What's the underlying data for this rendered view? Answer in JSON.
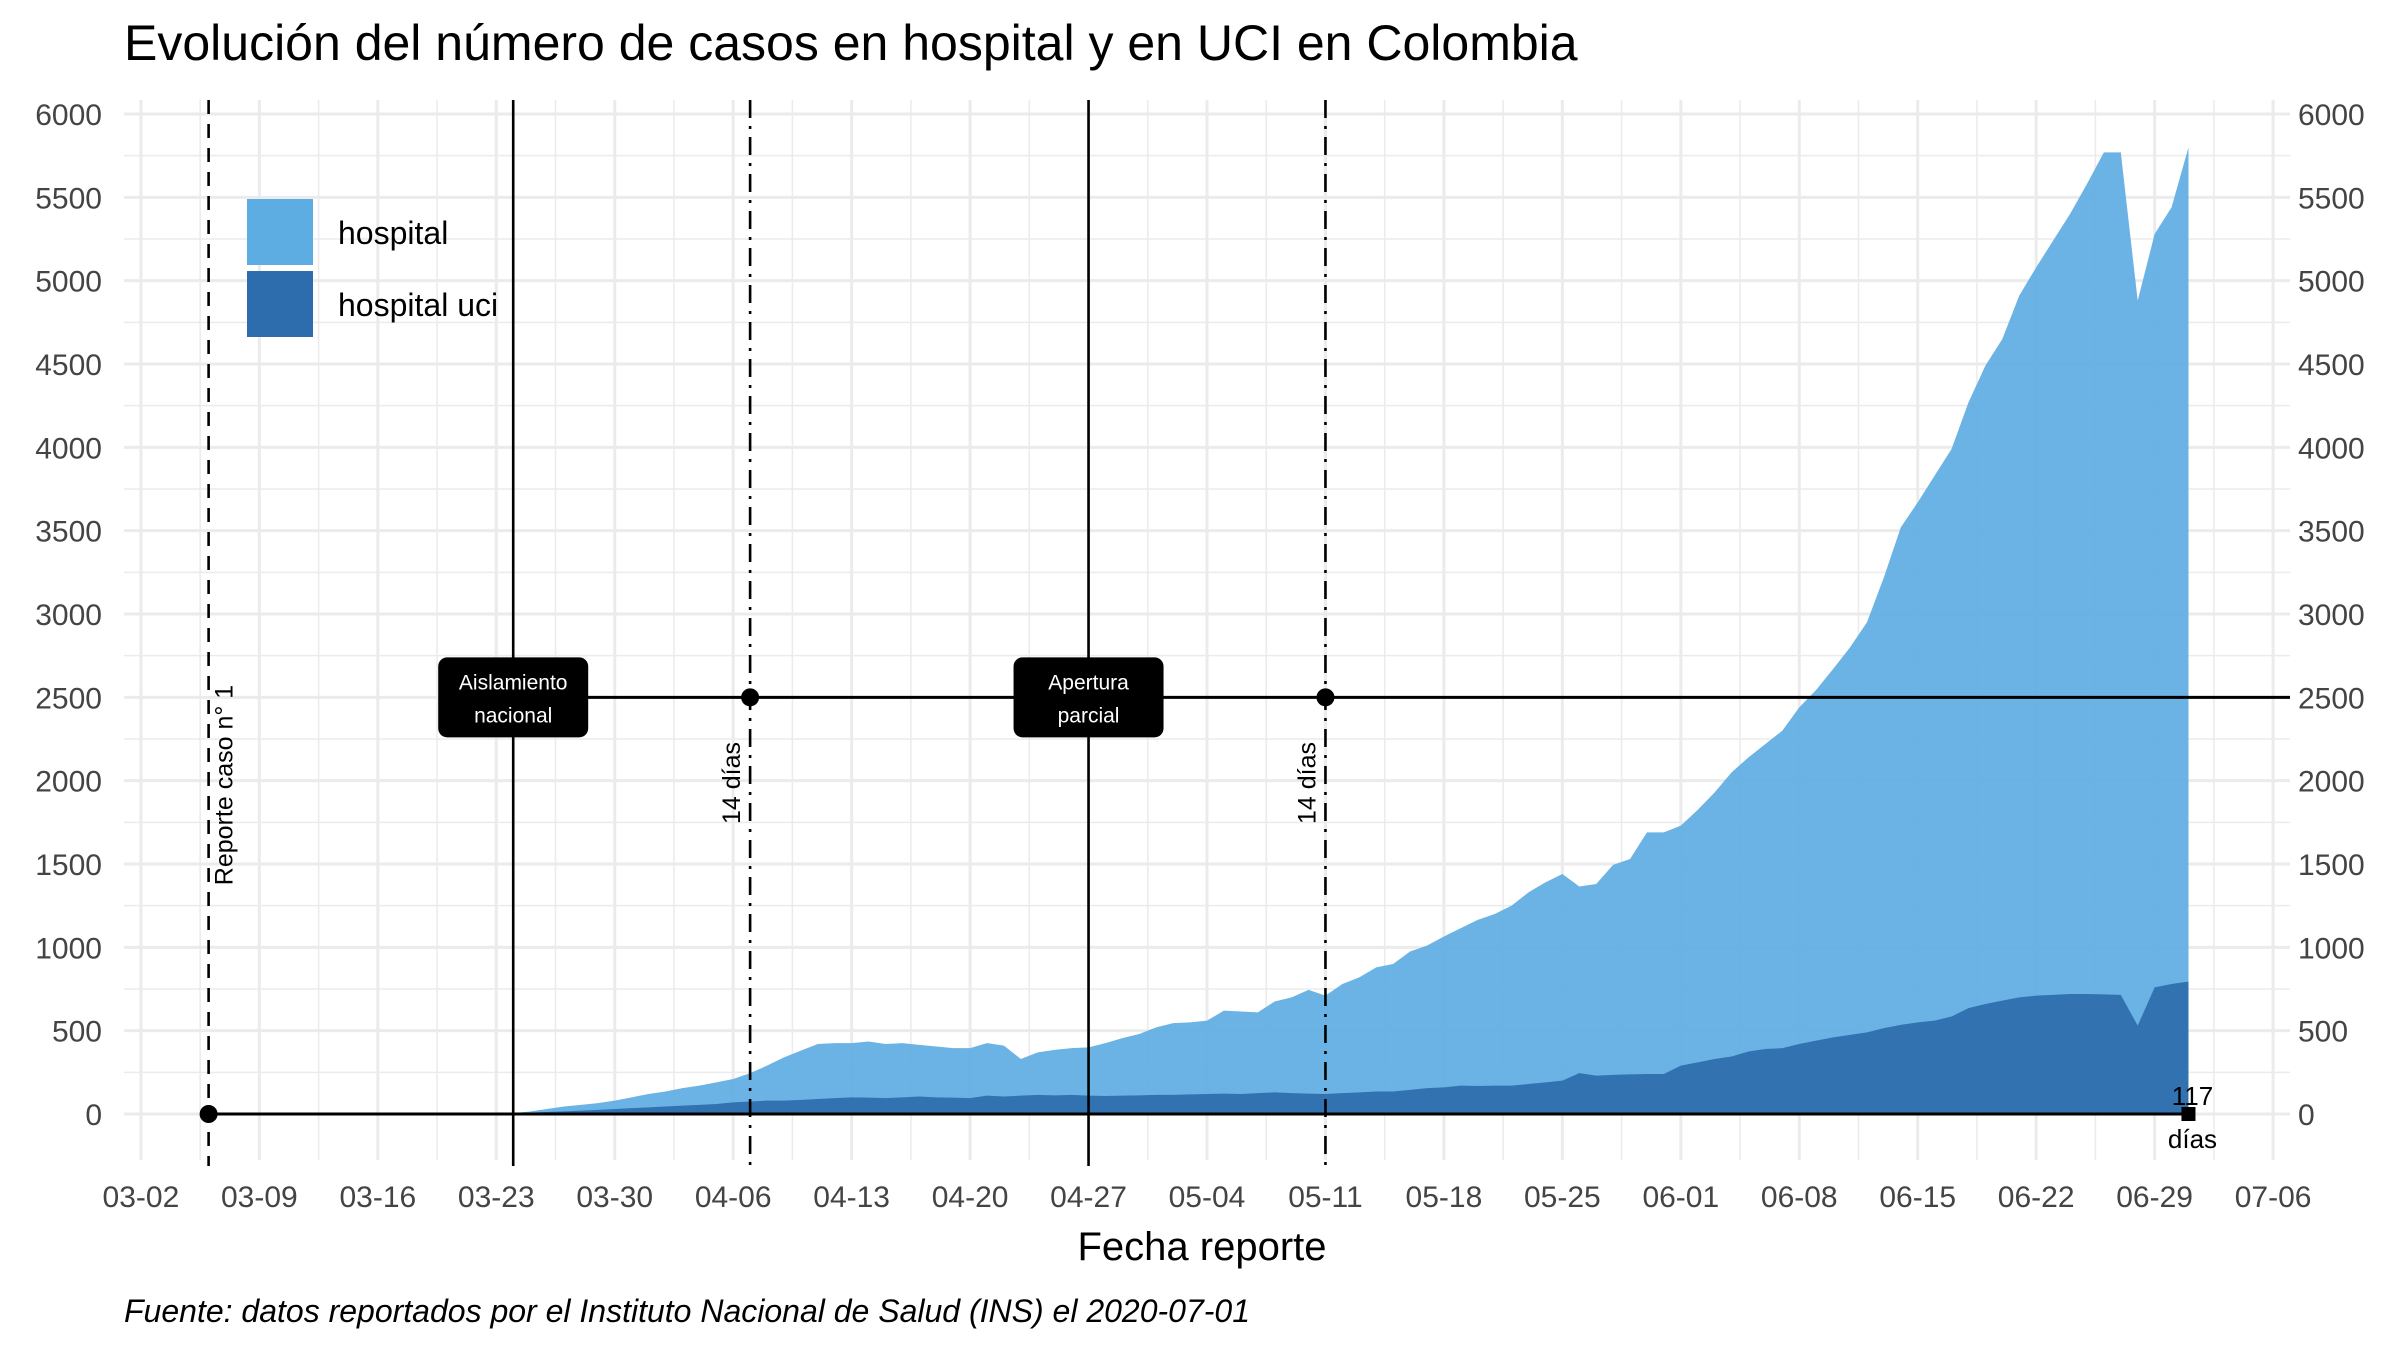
{
  "chart_data": {
    "type": "area",
    "title": "Evolución del número de casos en hospital y en UCI en Colombia",
    "xlabel": "Fecha reporte",
    "ylabel": "",
    "caption": "Fuente: datos reportados por el Instituto Nacional de Salud (INS) el 2020-07-01",
    "x_ticks": [
      "03-02",
      "03-09",
      "03-16",
      "03-23",
      "03-30",
      "04-06",
      "04-13",
      "04-20",
      "04-27",
      "05-04",
      "05-11",
      "05-18",
      "05-25",
      "06-01",
      "06-08",
      "06-15",
      "06-22",
      "06-29",
      "07-06"
    ],
    "y_ticks": [
      "0",
      "500",
      "1000",
      "1500",
      "2000",
      "2500",
      "3000",
      "3500",
      "4000",
      "4500",
      "5000",
      "5500",
      "6000"
    ],
    "ylim": [
      -250,
      6150
    ],
    "xlim": [
      "2020-03-01",
      "2020-07-07"
    ],
    "grid": true,
    "legend_position": "top-left",
    "colors": {
      "hospital": "#5DADE2",
      "hospital_uci": "#2E6DAD"
    },
    "series": [
      {
        "name": "hospital",
        "points": [
          [
            "2020-03-24",
            5
          ],
          [
            "2020-03-25",
            15
          ],
          [
            "2020-03-26",
            30
          ],
          [
            "2020-03-27",
            45
          ],
          [
            "2020-03-28",
            55
          ],
          [
            "2020-03-29",
            65
          ],
          [
            "2020-03-30",
            80
          ],
          [
            "2020-03-31",
            100
          ],
          [
            "2020-04-01",
            120
          ],
          [
            "2020-04-02",
            135
          ],
          [
            "2020-04-03",
            155
          ],
          [
            "2020-04-04",
            170
          ],
          [
            "2020-04-05",
            190
          ],
          [
            "2020-04-06",
            210
          ],
          [
            "2020-04-07",
            245
          ],
          [
            "2020-04-08",
            290
          ],
          [
            "2020-04-09",
            340
          ],
          [
            "2020-04-10",
            380
          ],
          [
            "2020-04-11",
            420
          ],
          [
            "2020-04-12",
            425
          ],
          [
            "2020-04-13",
            425
          ],
          [
            "2020-04-14",
            435
          ],
          [
            "2020-04-15",
            420
          ],
          [
            "2020-04-16",
            425
          ],
          [
            "2020-04-17",
            415
          ],
          [
            "2020-04-18",
            405
          ],
          [
            "2020-04-19",
            395
          ],
          [
            "2020-04-20",
            395
          ],
          [
            "2020-04-21",
            425
          ],
          [
            "2020-04-22",
            410
          ],
          [
            "2020-04-23",
            330
          ],
          [
            "2020-04-24",
            370
          ],
          [
            "2020-04-25",
            385
          ],
          [
            "2020-04-26",
            395
          ],
          [
            "2020-04-27",
            400
          ],
          [
            "2020-04-28",
            425
          ],
          [
            "2020-04-29",
            455
          ],
          [
            "2020-04-30",
            480
          ],
          [
            "2020-05-01",
            520
          ],
          [
            "2020-05-02",
            545
          ],
          [
            "2020-05-03",
            550
          ],
          [
            "2020-05-04",
            560
          ],
          [
            "2020-05-05",
            620
          ],
          [
            "2020-05-06",
            615
          ],
          [
            "2020-05-07",
            610
          ],
          [
            "2020-05-08",
            675
          ],
          [
            "2020-05-09",
            700
          ],
          [
            "2020-05-10",
            745
          ],
          [
            "2020-05-11",
            710
          ],
          [
            "2020-05-12",
            780
          ],
          [
            "2020-05-13",
            820
          ],
          [
            "2020-05-14",
            880
          ],
          [
            "2020-05-15",
            900
          ],
          [
            "2020-05-16",
            975
          ],
          [
            "2020-05-17",
            1010
          ],
          [
            "2020-05-18",
            1065
          ],
          [
            "2020-05-19",
            1115
          ],
          [
            "2020-05-20",
            1165
          ],
          [
            "2020-05-21",
            1200
          ],
          [
            "2020-05-22",
            1250
          ],
          [
            "2020-05-23",
            1330
          ],
          [
            "2020-05-24",
            1390
          ],
          [
            "2020-05-25",
            1440
          ],
          [
            "2020-05-26",
            1365
          ],
          [
            "2020-05-27",
            1380
          ],
          [
            "2020-05-28",
            1495
          ],
          [
            "2020-05-29",
            1530
          ],
          [
            "2020-05-30",
            1690
          ],
          [
            "2020-05-31",
            1690
          ],
          [
            "2020-06-01",
            1730
          ],
          [
            "2020-06-02",
            1825
          ],
          [
            "2020-06-03",
            1930
          ],
          [
            "2020-06-04",
            2050
          ],
          [
            "2020-06-05",
            2140
          ],
          [
            "2020-06-06",
            2220
          ],
          [
            "2020-06-07",
            2300
          ],
          [
            "2020-06-08",
            2440
          ],
          [
            "2020-06-09",
            2545
          ],
          [
            "2020-06-10",
            2670
          ],
          [
            "2020-06-11",
            2800
          ],
          [
            "2020-06-12",
            2950
          ],
          [
            "2020-06-13",
            3220
          ],
          [
            "2020-06-14",
            3520
          ],
          [
            "2020-06-15",
            3670
          ],
          [
            "2020-06-16",
            3830
          ],
          [
            "2020-06-17",
            3990
          ],
          [
            "2020-06-18",
            4270
          ],
          [
            "2020-06-19",
            4490
          ],
          [
            "2020-06-20",
            4650
          ],
          [
            "2020-06-21",
            4910
          ],
          [
            "2020-06-22",
            5080
          ],
          [
            "2020-06-23",
            5240
          ],
          [
            "2020-06-24",
            5400
          ],
          [
            "2020-06-25",
            5580
          ],
          [
            "2020-06-26",
            5770
          ],
          [
            "2020-06-27",
            5770
          ],
          [
            "2020-06-28",
            4880
          ],
          [
            "2020-06-29",
            5280
          ],
          [
            "2020-06-30",
            5440
          ],
          [
            "2020-07-01",
            5800
          ]
        ]
      },
      {
        "name": "hospital uci",
        "points": [
          [
            "2020-03-24",
            3
          ],
          [
            "2020-03-25",
            8
          ],
          [
            "2020-03-26",
            12
          ],
          [
            "2020-03-27",
            16
          ],
          [
            "2020-03-28",
            20
          ],
          [
            "2020-03-29",
            25
          ],
          [
            "2020-03-30",
            30
          ],
          [
            "2020-03-31",
            35
          ],
          [
            "2020-04-01",
            40
          ],
          [
            "2020-04-02",
            45
          ],
          [
            "2020-04-03",
            50
          ],
          [
            "2020-04-04",
            55
          ],
          [
            "2020-04-05",
            60
          ],
          [
            "2020-04-06",
            70
          ],
          [
            "2020-04-07",
            75
          ],
          [
            "2020-04-08",
            80
          ],
          [
            "2020-04-09",
            80
          ],
          [
            "2020-04-10",
            85
          ],
          [
            "2020-04-11",
            90
          ],
          [
            "2020-04-12",
            95
          ],
          [
            "2020-04-13",
            100
          ],
          [
            "2020-04-14",
            98
          ],
          [
            "2020-04-15",
            95
          ],
          [
            "2020-04-16",
            100
          ],
          [
            "2020-04-17",
            105
          ],
          [
            "2020-04-18",
            100
          ],
          [
            "2020-04-19",
            98
          ],
          [
            "2020-04-20",
            95
          ],
          [
            "2020-04-21",
            110
          ],
          [
            "2020-04-22",
            105
          ],
          [
            "2020-04-23",
            110
          ],
          [
            "2020-04-24",
            115
          ],
          [
            "2020-04-25",
            112
          ],
          [
            "2020-04-26",
            115
          ],
          [
            "2020-04-27",
            110
          ],
          [
            "2020-04-28",
            108
          ],
          [
            "2020-04-29",
            110
          ],
          [
            "2020-04-30",
            112
          ],
          [
            "2020-05-01",
            115
          ],
          [
            "2020-05-02",
            115
          ],
          [
            "2020-05-03",
            118
          ],
          [
            "2020-05-04",
            120
          ],
          [
            "2020-05-05",
            122
          ],
          [
            "2020-05-06",
            120
          ],
          [
            "2020-05-07",
            125
          ],
          [
            "2020-05-08",
            130
          ],
          [
            "2020-05-09",
            125
          ],
          [
            "2020-05-10",
            122
          ],
          [
            "2020-05-11",
            120
          ],
          [
            "2020-05-12",
            125
          ],
          [
            "2020-05-13",
            130
          ],
          [
            "2020-05-14",
            135
          ],
          [
            "2020-05-15",
            135
          ],
          [
            "2020-05-16",
            145
          ],
          [
            "2020-05-17",
            155
          ],
          [
            "2020-05-18",
            160
          ],
          [
            "2020-05-19",
            170
          ],
          [
            "2020-05-20",
            168
          ],
          [
            "2020-05-21",
            170
          ],
          [
            "2020-05-22",
            170
          ],
          [
            "2020-05-23",
            180
          ],
          [
            "2020-05-24",
            190
          ],
          [
            "2020-05-25",
            200
          ],
          [
            "2020-05-26",
            245
          ],
          [
            "2020-05-27",
            230
          ],
          [
            "2020-05-28",
            235
          ],
          [
            "2020-05-29",
            238
          ],
          [
            "2020-05-30",
            240
          ],
          [
            "2020-05-31",
            240
          ],
          [
            "2020-06-01",
            290
          ],
          [
            "2020-06-02",
            310
          ],
          [
            "2020-06-03",
            330
          ],
          [
            "2020-06-04",
            345
          ],
          [
            "2020-06-05",
            375
          ],
          [
            "2020-06-06",
            390
          ],
          [
            "2020-06-07",
            395
          ],
          [
            "2020-06-08",
            420
          ],
          [
            "2020-06-09",
            440
          ],
          [
            "2020-06-10",
            460
          ],
          [
            "2020-06-11",
            475
          ],
          [
            "2020-06-12",
            490
          ],
          [
            "2020-06-13",
            515
          ],
          [
            "2020-06-14",
            535
          ],
          [
            "2020-06-15",
            550
          ],
          [
            "2020-06-16",
            560
          ],
          [
            "2020-06-17",
            585
          ],
          [
            "2020-06-18",
            635
          ],
          [
            "2020-06-19",
            660
          ],
          [
            "2020-06-20",
            680
          ],
          [
            "2020-06-21",
            700
          ],
          [
            "2020-06-22",
            710
          ],
          [
            "2020-06-23",
            715
          ],
          [
            "2020-06-24",
            720
          ],
          [
            "2020-06-25",
            720
          ],
          [
            "2020-06-26",
            718
          ],
          [
            "2020-06-27",
            715
          ],
          [
            "2020-06-28",
            530
          ],
          [
            "2020-06-29",
            760
          ],
          [
            "2020-06-30",
            780
          ],
          [
            "2020-07-01",
            795
          ]
        ]
      }
    ],
    "reference_lines": [
      {
        "date": "2020-03-06",
        "style": "dashed",
        "label": "Reporte caso n° 1"
      },
      {
        "date": "2020-03-24",
        "style": "solid"
      },
      {
        "date": "2020-04-07",
        "style": "dotdash",
        "label": "14 días"
      },
      {
        "date": "2020-04-27",
        "style": "solid"
      },
      {
        "date": "2020-05-11",
        "style": "dotdash",
        "label": "14 días"
      }
    ],
    "timeline": [
      {
        "y": 0,
        "from": "2020-03-06",
        "to": "2020-07-01",
        "end_label": "117\ndías"
      },
      {
        "y": 2500,
        "from": "2020-03-24",
        "to": "2020-07-07"
      }
    ],
    "timeline_points": [
      {
        "date": "2020-03-06",
        "y": 0
      },
      {
        "date": "2020-04-07",
        "y": 2500
      },
      {
        "date": "2020-05-11",
        "y": 2500
      },
      {
        "date": "2020-07-01",
        "y": 0
      }
    ],
    "badges": [
      {
        "date": "2020-03-24",
        "y": 2500,
        "lines": [
          "Aislamiento",
          "nacional"
        ]
      },
      {
        "date": "2020-04-27",
        "y": 2500,
        "lines": [
          "Apertura",
          "parcial"
        ]
      }
    ]
  }
}
